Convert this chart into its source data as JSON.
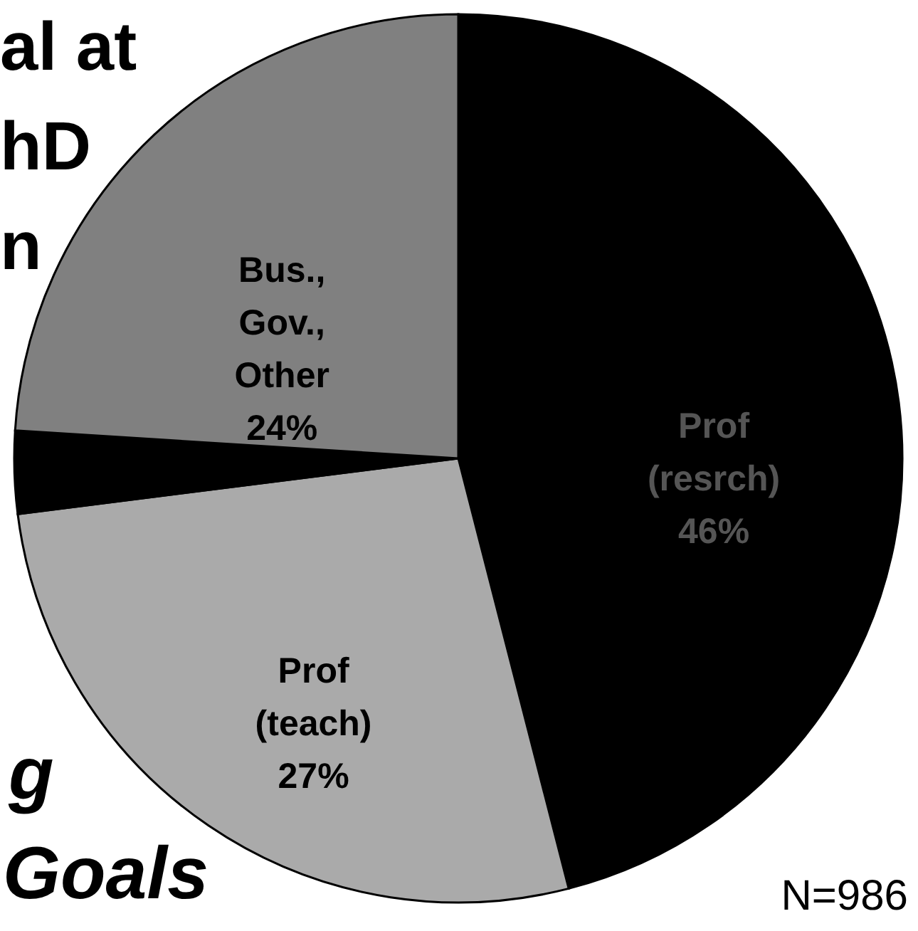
{
  "chart_data": {
    "type": "pie",
    "categories": [
      "Prof (resrch)",
      "Prof (teach)",
      null,
      "Bus., Gov., Other"
    ],
    "values": [
      46,
      27,
      3,
      24
    ],
    "colors": [
      "#000000",
      "#aaaaaa",
      "#000000",
      "#808080"
    ],
    "value_labels": [
      "46%",
      "27%",
      null,
      "24%"
    ],
    "annotations": [
      "al at",
      "hD",
      "n",
      "g",
      "Goals",
      "N=986"
    ]
  }
}
